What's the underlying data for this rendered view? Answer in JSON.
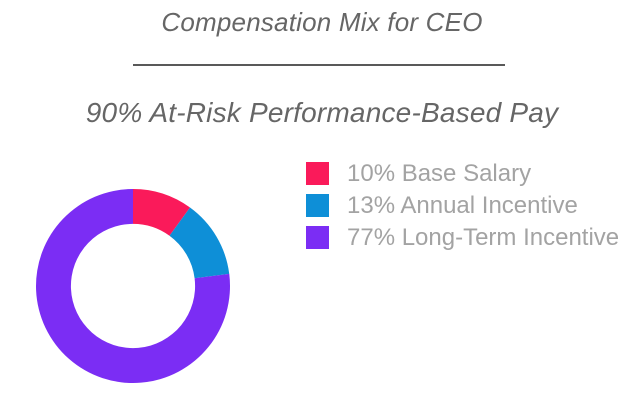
{
  "page": {
    "title": "Compensation Mix for CEO",
    "subtitle": "90% At-Risk Performance-Based Pay"
  },
  "legend": {
    "items": [
      {
        "label": "10% Base Salary"
      },
      {
        "label": "13% Annual Incentive"
      },
      {
        "label": "77% Long-Term Incentive"
      }
    ]
  },
  "chart_data": {
    "type": "pie",
    "subtype": "donut",
    "title": "Compensation Mix for CEO",
    "subtitle": "90% At-Risk Performance-Based Pay",
    "labels": [
      "Base Salary",
      "Annual Incentive",
      "Long-Term Incentive"
    ],
    "values": [
      10,
      13,
      77
    ],
    "unit": "%",
    "colors": [
      "#FA1A5A",
      "#0E8FD7",
      "#7B2DF4"
    ],
    "hole_ratio": 0.64,
    "start_angle_deg": 0,
    "direction": "clockwise",
    "legend_position": "right",
    "title_color": "#666666",
    "divider_color": "#595959",
    "legend_text_color": "#A3A3A3",
    "background_color": "#FFFFFF"
  }
}
